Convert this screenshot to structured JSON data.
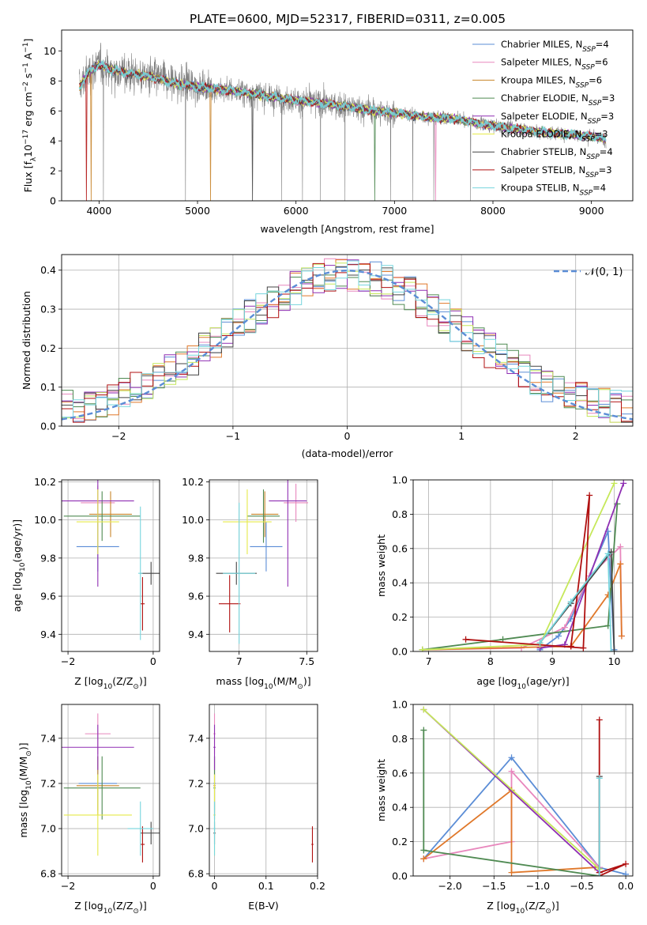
{
  "figure_title": "PLATE=0600, MJD=52317, FIBERID=0311, z=0.005",
  "colors": {
    "chabrier_miles": "#5b8dd6",
    "salpeter_miles": "#e887bd",
    "kroupa_miles": "#c8842a",
    "chabrier_elodie": "#4f8a52",
    "salpeter_elodie": "#8f2fb3",
    "kroupa_elodie": "#e6ea4a",
    "chabrier_stelib": "#444444",
    "salpeter_stelib": "#b01010",
    "kroupa_stelib": "#76d5dd",
    "orange": "#e0782a",
    "lime": "#c6e85a",
    "data_gray": "#808080",
    "normal_curve": "#5b8dd6"
  },
  "chart_data": [
    {
      "id": "spectrum",
      "type": "line",
      "title": "PLATE=0600, MJD=52317, FIBERID=0311, z=0.005",
      "xlabel": "wavelength [Angstrom, rest frame]",
      "ylabel": "Flux [f",
      "ylabel_sub": "λ",
      "ylabel_mid": "10",
      "ylabel_sup": "−17",
      "ylabel_tail": " erg cm",
      "ylabel_sup2": "−2",
      "ylabel_tail2": " s",
      "ylabel_sup3": "−1",
      "ylabel_tail3": " A",
      "ylabel_sup4": "−1",
      "ylabel_end": "]",
      "xlim": [
        3620,
        9420
      ],
      "ylim": [
        0,
        11.4
      ],
      "xticks": [
        4000,
        5000,
        6000,
        7000,
        8000,
        9000
      ],
      "yticks": [
        0,
        2,
        4,
        6,
        8,
        10
      ],
      "legend_placement": "top-right",
      "series": [
        {
          "name": "Chabrier MILES, N",
          "sub": "SSP",
          "tail": "=4"
        },
        {
          "name": "Salpeter MILES, N",
          "sub": "SSP",
          "tail": "=6"
        },
        {
          "name": "Kroupa MILES, N",
          "sub": "SSP",
          "tail": "=6"
        },
        {
          "name": "Chabrier ELODIE, N",
          "sub": "SSP",
          "tail": "=3"
        },
        {
          "name": "Salpeter ELODIE, N",
          "sub": "SSP",
          "tail": "=3"
        },
        {
          "name": "Kroupa ELODIE, N",
          "sub": "SSP",
          "tail": "=3"
        },
        {
          "name": "Chabrier STELIB, N",
          "sub": "SSP",
          "tail": "=4"
        },
        {
          "name": "Salpeter STELIB, N",
          "sub": "SSP",
          "tail": "=3"
        },
        {
          "name": "Kroupa STELIB, N",
          "sub": "SSP",
          "tail": "=4"
        }
      ],
      "continuum": {
        "x": [
          3800,
          3900,
          4000,
          4100,
          4300,
          4500,
          4800,
          5000,
          5300,
          5600,
          6000,
          6300,
          6600,
          6800,
          7000,
          7300,
          7600,
          8000,
          8500,
          9000,
          9150
        ],
        "y": [
          7.6,
          8.6,
          9.1,
          8.8,
          8.5,
          8.3,
          7.8,
          7.6,
          7.4,
          7.1,
          6.7,
          6.5,
          6.2,
          6.0,
          5.9,
          5.6,
          5.5,
          5.0,
          4.6,
          4.3,
          4.1
        ]
      }
    },
    {
      "id": "residuals",
      "type": "bar",
      "xlabel": "(data-model)/error",
      "ylabel": "Normed distribution",
      "xlim": [
        -2.5,
        2.5
      ],
      "ylim": [
        0,
        0.44
      ],
      "xticks": [
        -2,
        -1,
        0,
        1,
        2
      ],
      "yticks": [
        0.0,
        0.1,
        0.2,
        0.3,
        0.4
      ],
      "grid": true,
      "legend_placement": "top-right",
      "legend_label": "(0, 1)",
      "legend_prefix": "𝒩",
      "bin_width": 0.1
    },
    {
      "id": "age_vs_Z",
      "type": "scatter",
      "xlabel": "Z [log",
      "xlabel_sub": "10",
      "xlabel_tail": "(Z/Z",
      "xlabel_sub2": "⊙",
      "xlabel_end": ")]",
      "ylabel": "age  [log",
      "ylabel_sub": "10",
      "ylabel_tail": "(age/yr)]",
      "xlim": [
        -2.15,
        0.15
      ],
      "ylim": [
        9.31,
        10.21
      ],
      "xticks": [
        -2,
        0
      ],
      "yticks": [
        9.4,
        9.6,
        9.8,
        10.0,
        10.2
      ],
      "points": [
        {
          "x": -1.3,
          "y": 9.86,
          "xerr": 0.5,
          "yerr": 0.13,
          "color": "chabrier_miles"
        },
        {
          "x": -1.3,
          "y": 10.09,
          "xerr": 0.4,
          "yerr": 0.09,
          "color": "salpeter_miles"
        },
        {
          "x": -1.0,
          "y": 10.03,
          "xerr": 0.5,
          "yerr": 0.12,
          "color": "kroupa_miles"
        },
        {
          "x": -1.2,
          "y": 10.02,
          "xerr": 0.9,
          "yerr": 0.13,
          "color": "chabrier_elodie"
        },
        {
          "x": -1.3,
          "y": 10.1,
          "xerr": 0.85,
          "yerr": 0.45,
          "color": "salpeter_elodie"
        },
        {
          "x": -1.3,
          "y": 9.99,
          "xerr": 0.5,
          "yerr": 0.17,
          "color": "kroupa_elodie"
        },
        {
          "x": -0.05,
          "y": 9.72,
          "xerr": 0.25,
          "yerr": 0.06,
          "color": "chabrier_stelib"
        },
        {
          "x": -0.25,
          "y": 9.56,
          "xerr": 0.05,
          "yerr": 0.14,
          "color": "salpeter_stelib"
        },
        {
          "x": -0.3,
          "y": 9.72,
          "xerr": 0.05,
          "yerr": 0.35,
          "color": "kroupa_stelib"
        }
      ]
    },
    {
      "id": "age_vs_mass",
      "type": "scatter",
      "xlabel": "mass [log",
      "xlabel_sub": "10",
      "xlabel_tail": "(M/M",
      "xlabel_sub2": "⊙",
      "xlabel_end": ")]",
      "ylabel": "",
      "xlim": [
        6.78,
        7.58
      ],
      "ylim": [
        9.31,
        10.21
      ],
      "xticks": [
        7.0,
        7.5
      ],
      "yticks": [
        9.4,
        9.6,
        9.8,
        10.0,
        10.2
      ],
      "points": [
        {
          "x": 7.2,
          "y": 9.86,
          "xerr": 0.12,
          "yerr": 0.13,
          "color": "chabrier_miles"
        },
        {
          "x": 7.42,
          "y": 10.09,
          "xerr": 0.09,
          "yerr": 0.1,
          "color": "salpeter_miles"
        },
        {
          "x": 7.19,
          "y": 10.03,
          "xerr": 0.1,
          "yerr": 0.12,
          "color": "kroupa_miles"
        },
        {
          "x": 7.18,
          "y": 10.02,
          "xerr": 0.12,
          "yerr": 0.14,
          "color": "chabrier_elodie"
        },
        {
          "x": 7.36,
          "y": 10.1,
          "xerr": 0.14,
          "yerr": 0.45,
          "color": "salpeter_elodie"
        },
        {
          "x": 7.06,
          "y": 9.99,
          "xerr": 0.18,
          "yerr": 0.17,
          "color": "kroupa_elodie"
        },
        {
          "x": 6.98,
          "y": 9.72,
          "xerr": 0.15,
          "yerr": 0.06,
          "color": "chabrier_stelib"
        },
        {
          "x": 6.93,
          "y": 9.56,
          "xerr": 0.08,
          "yerr": 0.15,
          "color": "salpeter_stelib"
        },
        {
          "x": 7.0,
          "y": 9.72,
          "xerr": 0.12,
          "yerr": 0.37,
          "color": "kroupa_stelib"
        }
      ]
    },
    {
      "id": "weight_vs_age",
      "type": "line",
      "xlabel": "age  [log",
      "xlabel_sub": "10",
      "xlabel_tail": "(age/yr)]",
      "ylabel": "mass weight",
      "xlim": [
        6.75,
        10.3
      ],
      "ylim": [
        0,
        1.0
      ],
      "xticks": [
        7,
        8,
        9,
        10
      ],
      "yticks": [
        0.0,
        0.2,
        0.4,
        0.6,
        0.8,
        1.0
      ],
      "grid": true,
      "series": [
        {
          "color": "chabrier_miles",
          "x": [
            8.8,
            9.1,
            9.3,
            9.9,
            10.0
          ],
          "y": [
            0.01,
            0.09,
            0.19,
            0.7,
            0.01
          ]
        },
        {
          "color": "salpeter_miles",
          "x": [
            6.9,
            8.5,
            9.2,
            9.6,
            10.1,
            10.12
          ],
          "y": [
            0.01,
            0.02,
            0.14,
            0.44,
            0.61,
            0.09
          ]
        },
        {
          "color": "orange",
          "x": [
            6.9,
            9.3,
            9.9,
            10.1,
            10.12
          ],
          "y": [
            0.01,
            0.03,
            0.33,
            0.51,
            0.09
          ]
        },
        {
          "color": "chabrier_elodie",
          "x": [
            6.9,
            8.2,
            9.9,
            10.05
          ],
          "y": [
            0.01,
            0.07,
            0.15,
            0.86
          ]
        },
        {
          "color": "salpeter_elodie",
          "x": [
            8.8,
            9.2,
            10.15
          ],
          "y": [
            0.02,
            0.04,
            0.98
          ]
        },
        {
          "color": "lime",
          "x": [
            6.9,
            8.8,
            10.0
          ],
          "y": [
            0.01,
            0.04,
            0.98
          ]
        },
        {
          "color": "chabrier_stelib",
          "x": [
            8.8,
            9.3,
            9.95,
            10.0
          ],
          "y": [
            0.05,
            0.28,
            0.58,
            0.0
          ]
        },
        {
          "color": "salpeter_stelib",
          "x": [
            7.6,
            9.5,
            9.6,
            9.3
          ],
          "y": [
            0.07,
            0.02,
            0.91,
            0.03
          ]
        },
        {
          "color": "kroupa_stelib",
          "x": [
            8.8,
            9.3,
            9.9,
            9.95
          ],
          "y": [
            0.05,
            0.29,
            0.57,
            0.0
          ]
        }
      ]
    },
    {
      "id": "mass_vs_Z",
      "type": "scatter",
      "xlabel": "Z [log",
      "xlabel_sub": "10",
      "xlabel_tail": "(Z/Z",
      "xlabel_sub2": "⊙",
      "xlabel_end": ")]",
      "ylabel": "mass [log",
      "ylabel_sub": "10",
      "ylabel_tail": "(M/M",
      "ylabel_sub2": "⊙",
      "ylabel_end": ")]",
      "xlim": [
        -2.15,
        0.15
      ],
      "ylim": [
        6.79,
        7.55
      ],
      "xticks": [
        -2,
        0
      ],
      "yticks": [
        6.8,
        7.0,
        7.2,
        7.4
      ],
      "points": [
        {
          "x": -1.3,
          "y": 7.2,
          "xerr": 0.45,
          "yerr": 0.12,
          "color": "chabrier_miles"
        },
        {
          "x": -1.3,
          "y": 7.42,
          "xerr": 0.3,
          "yerr": 0.09,
          "color": "salpeter_miles"
        },
        {
          "x": -1.3,
          "y": 7.19,
          "xerr": 0.5,
          "yerr": 0.13,
          "color": "kroupa_miles"
        },
        {
          "x": -1.2,
          "y": 7.18,
          "xerr": 0.9,
          "yerr": 0.14,
          "color": "chabrier_elodie"
        },
        {
          "x": -1.3,
          "y": 7.36,
          "xerr": 0.85,
          "yerr": 0.1,
          "color": "salpeter_elodie"
        },
        {
          "x": -1.3,
          "y": 7.06,
          "xerr": 0.8,
          "yerr": 0.18,
          "color": "kroupa_elodie"
        },
        {
          "x": -0.05,
          "y": 6.98,
          "xerr": 0.25,
          "yerr": 0.05,
          "color": "chabrier_stelib"
        },
        {
          "x": -0.25,
          "y": 6.93,
          "xerr": 0.05,
          "yerr": 0.08,
          "color": "salpeter_stelib"
        },
        {
          "x": -0.3,
          "y": 7.0,
          "xerr": 0.3,
          "yerr": 0.12,
          "color": "kroupa_stelib"
        }
      ]
    },
    {
      "id": "mass_vs_EBV",
      "type": "scatter",
      "xlabel": "E(B-V)",
      "ylabel": "",
      "xlim": [
        -0.01,
        0.2
      ],
      "ylim": [
        6.79,
        7.55
      ],
      "xticks": [
        0.0,
        0.1,
        0.2
      ],
      "yticks": [
        6.8,
        7.0,
        7.2,
        7.4
      ],
      "points": [
        {
          "x": 0.0,
          "y": 7.2,
          "xerr": 0.002,
          "yerr": 0.12,
          "color": "chabrier_miles"
        },
        {
          "x": 0.0,
          "y": 7.42,
          "xerr": 0.002,
          "yerr": 0.09,
          "color": "salpeter_miles"
        },
        {
          "x": 0.0,
          "y": 7.19,
          "xerr": 0.002,
          "yerr": 0.13,
          "color": "kroupa_miles"
        },
        {
          "x": 0.0,
          "y": 7.18,
          "xerr": 0.002,
          "yerr": 0.14,
          "color": "chabrier_elodie"
        },
        {
          "x": 0.0,
          "y": 7.36,
          "xerr": 0.002,
          "yerr": 0.1,
          "color": "salpeter_elodie"
        },
        {
          "x": 0.0,
          "y": 7.06,
          "xerr": 0.002,
          "yerr": 0.18,
          "color": "kroupa_elodie"
        },
        {
          "x": 0.0,
          "y": 6.98,
          "xerr": 0.002,
          "yerr": 0.05,
          "color": "chabrier_stelib"
        },
        {
          "x": 0.19,
          "y": 6.93,
          "xerr": 0.002,
          "yerr": 0.08,
          "color": "salpeter_stelib"
        },
        {
          "x": 0.0,
          "y": 7.0,
          "xerr": 0.002,
          "yerr": 0.12,
          "color": "kroupa_stelib"
        }
      ]
    },
    {
      "id": "weight_vs_Z",
      "type": "line",
      "xlabel": "Z [log",
      "xlabel_sub": "10",
      "xlabel_tail": "(Z/Z",
      "xlabel_sub2": "⊙",
      "xlabel_end": ")]",
      "ylabel": "mass weight",
      "xlim": [
        -2.42,
        0.08
      ],
      "ylim": [
        0,
        1.0
      ],
      "xticks": [
        -2.0,
        -1.5,
        -1.0,
        -0.5,
        0.0
      ],
      "yticks": [
        0.0,
        0.2,
        0.4,
        0.6,
        0.8,
        1.0
      ],
      "grid": true,
      "series": [
        {
          "color": "chabrier_miles",
          "x": [
            -2.3,
            -1.3,
            -0.3,
            0.0
          ],
          "y": [
            0.1,
            0.69,
            0.05,
            0.01
          ]
        },
        {
          "color": "salpeter_miles",
          "x": [
            -2.3,
            -1.3,
            -1.3,
            -0.3
          ],
          "y": [
            0.1,
            0.2,
            0.61,
            0.05
          ]
        },
        {
          "color": "orange",
          "x": [
            -2.3,
            -1.3,
            -1.3,
            -0.35
          ],
          "y": [
            0.1,
            0.5,
            0.02,
            0.05
          ]
        },
        {
          "color": "chabrier_elodie",
          "x": [
            -2.3,
            -2.3,
            -0.3
          ],
          "y": [
            0.85,
            0.15,
            0.0
          ]
        },
        {
          "color": "salpeter_elodie",
          "x": [
            -2.3,
            -0.3
          ],
          "y": [
            0.97,
            0.02
          ]
        },
        {
          "color": "lime",
          "x": [
            -2.3,
            -0.3
          ],
          "y": [
            0.97,
            0.04
          ]
        },
        {
          "color": "chabrier_stelib",
          "x": [
            -0.3,
            -0.3
          ],
          "y": [
            0.0,
            0.58
          ]
        },
        {
          "color": "salpeter_stelib",
          "x": [
            -0.3,
            -0.3,
            0.0,
            -0.3
          ],
          "y": [
            0.91,
            0.0,
            0.07,
            0.02
          ]
        },
        {
          "color": "kroupa_stelib",
          "x": [
            -0.3,
            -0.3
          ],
          "y": [
            0.57,
            0.0
          ]
        }
      ]
    }
  ]
}
